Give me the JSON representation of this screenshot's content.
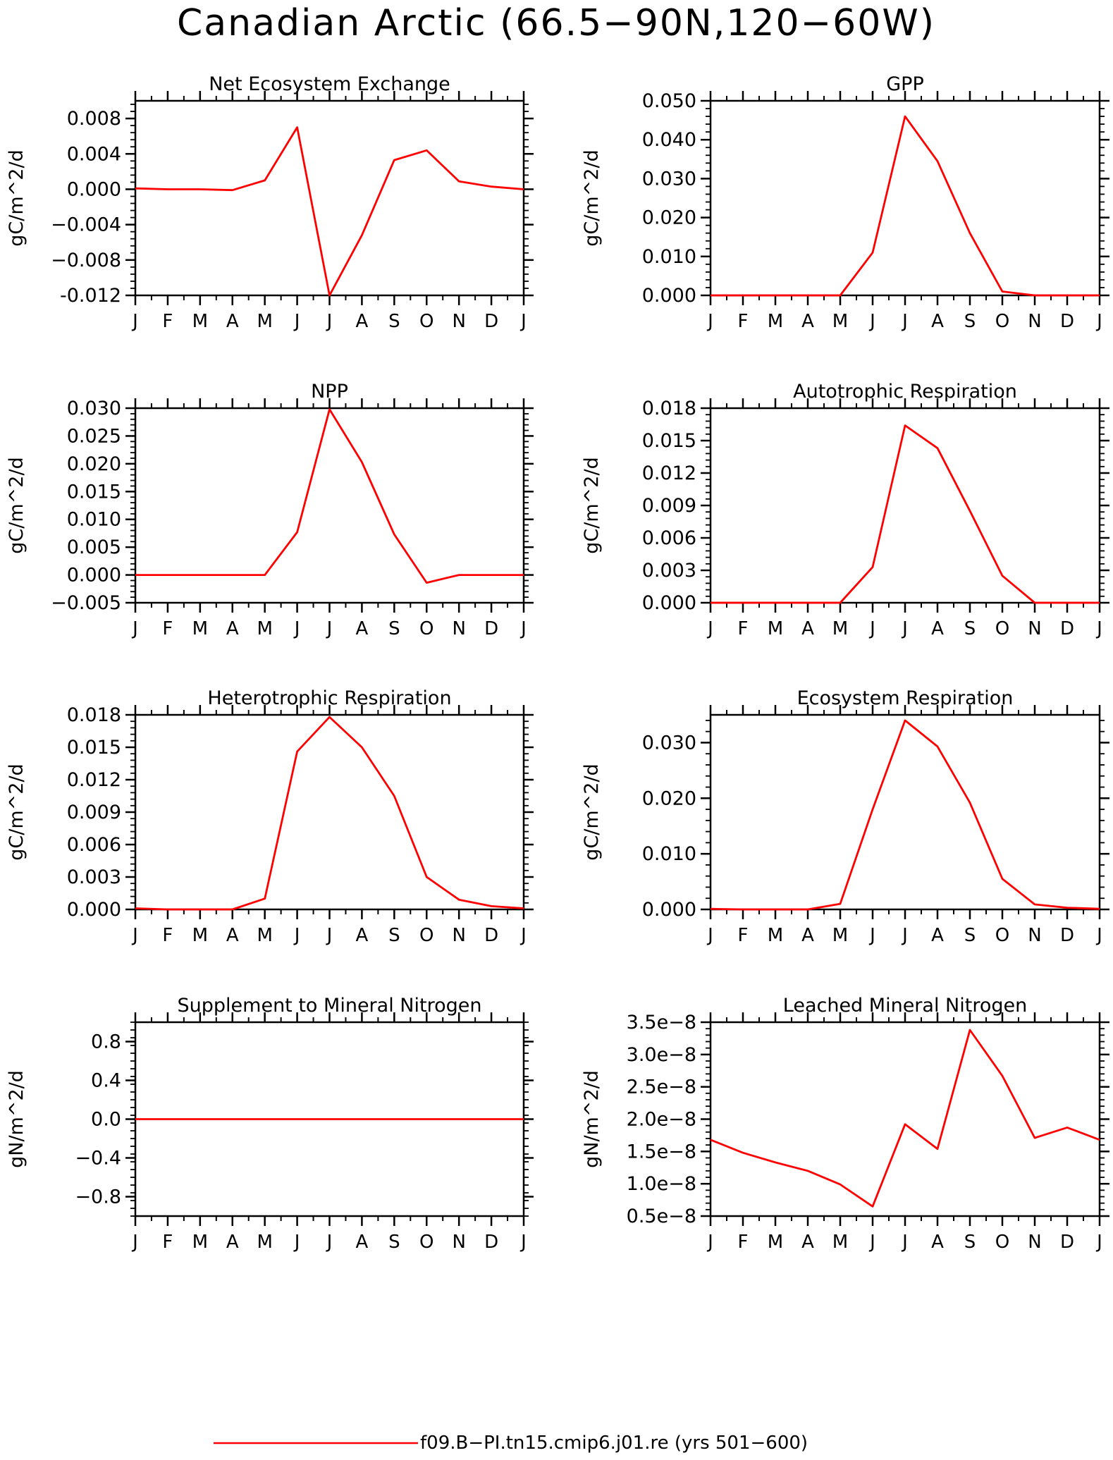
{
  "figure": {
    "title": "Canadian Arctic (66.5−90N,120−60W)",
    "legend_label": "f09.B−PI.tn15.cmip6.j01.re (yrs 501−600)",
    "line_color": "#ff0000"
  },
  "months": [
    "J",
    "F",
    "M",
    "A",
    "M",
    "J",
    "J",
    "A",
    "S",
    "O",
    "N",
    "D",
    "J"
  ],
  "chart_data": [
    {
      "type": "line",
      "title": "Net Ecosystem Exchange",
      "ylabel": "gC/m^2/d",
      "ylim": [
        -0.012,
        0.01
      ],
      "yticks": [
        0.008,
        0.004,
        0.0,
        -0.004,
        -0.008,
        -0.012
      ],
      "ytick_labels": [
        "0.008",
        "0.004",
        "0.000",
        "−0.004",
        "−0.008",
        "-0.012"
      ],
      "series": [
        {
          "values": [
            0.0001,
            0.0,
            0.0,
            -0.0001,
            0.001,
            0.007,
            -0.012,
            -0.0052,
            0.0033,
            0.0044,
            0.0009,
            0.0003,
            0.0
          ]
        }
      ]
    },
    {
      "type": "line",
      "title": "GPP",
      "ylabel": "gC/m^2/d",
      "ylim": [
        0.0,
        0.05
      ],
      "yticks": [
        0.05,
        0.04,
        0.03,
        0.02,
        0.01,
        0.0
      ],
      "ytick_labels": [
        "0.050",
        "0.040",
        "0.030",
        "0.020",
        "0.010",
        "0.000"
      ],
      "series": [
        {
          "values": [
            0.0,
            0.0,
            0.0,
            0.0,
            0.0,
            0.011,
            0.046,
            0.0345,
            0.016,
            0.001,
            0.0,
            0.0,
            0.0
          ]
        }
      ]
    },
    {
      "type": "line",
      "title": "NPP",
      "ylabel": "gC/m^2/d",
      "ylim": [
        -0.005,
        0.03
      ],
      "yticks": [
        0.03,
        0.025,
        0.02,
        0.015,
        0.01,
        0.005,
        0.0,
        -0.005
      ],
      "ytick_labels": [
        "0.030",
        "0.025",
        "0.020",
        "0.015",
        "0.010",
        "0.005",
        "0.000",
        "−0.005"
      ],
      "series": [
        {
          "values": [
            0.0,
            0.0,
            0.0,
            0.0,
            0.0,
            0.0077,
            0.0298,
            0.0203,
            0.0073,
            -0.0014,
            0.0,
            0.0,
            0.0
          ]
        }
      ]
    },
    {
      "type": "line",
      "title": "Autotrophic Respiration",
      "ylabel": "gC/m^2/d",
      "ylim": [
        0.0,
        0.018
      ],
      "yticks": [
        0.018,
        0.015,
        0.012,
        0.009,
        0.006,
        0.003,
        0.0
      ],
      "ytick_labels": [
        "0.018",
        "0.015",
        "0.012",
        "0.009",
        "0.006",
        "0.003",
        "0.000"
      ],
      "series": [
        {
          "values": [
            0.0,
            0.0,
            0.0,
            0.0,
            0.0,
            0.0033,
            0.0164,
            0.0143,
            0.0085,
            0.0025,
            0.0,
            0.0,
            0.0
          ]
        }
      ]
    },
    {
      "type": "line",
      "title": "Heterotrophic Respiration",
      "ylabel": "gC/m^2/d",
      "ylim": [
        0.0,
        0.018
      ],
      "yticks": [
        0.018,
        0.015,
        0.012,
        0.009,
        0.006,
        0.003,
        0.0
      ],
      "ytick_labels": [
        "0.018",
        "0.015",
        "0.012",
        "0.009",
        "0.006",
        "0.003",
        "0.000"
      ],
      "series": [
        {
          "values": [
            0.0001,
            0.0,
            0.0,
            0.0,
            0.001,
            0.0146,
            0.0178,
            0.015,
            0.0105,
            0.003,
            0.0009,
            0.0003,
            0.0001
          ]
        }
      ]
    },
    {
      "type": "line",
      "title": "Ecosystem Respiration",
      "ylabel": "gC/m^2/d",
      "ylim": [
        0.0,
        0.035
      ],
      "yticks": [
        0.03,
        0.02,
        0.01,
        0.0
      ],
      "ytick_labels": [
        "0.030",
        "0.020",
        "0.010",
        "0.000"
      ],
      "series": [
        {
          "values": [
            0.0001,
            0.0,
            0.0,
            0.0,
            0.001,
            0.018,
            0.034,
            0.0293,
            0.0192,
            0.0055,
            0.0009,
            0.0003,
            0.0001
          ]
        }
      ]
    },
    {
      "type": "line",
      "title": "Supplement to Mineral Nitrogen",
      "ylabel": "gN/m^2/d",
      "ylim": [
        -1.0,
        1.0
      ],
      "yticks": [
        0.8,
        0.4,
        0.0,
        -0.4,
        -0.8
      ],
      "ytick_labels": [
        "0.8",
        "0.4",
        "0.0",
        "−0.4",
        "−0.8"
      ],
      "series": [
        {
          "values": [
            0,
            0,
            0,
            0,
            0,
            0,
            0,
            0,
            0,
            0,
            0,
            0,
            0
          ]
        }
      ]
    },
    {
      "type": "line",
      "title": "Leached Mineral Nitrogen",
      "ylabel": "gN/m^2/d",
      "ylim": [
        5e-09,
        3.5e-08
      ],
      "yticks": [
        3.5e-08,
        3e-08,
        2.5e-08,
        2e-08,
        1.5e-08,
        1e-08,
        5e-09
      ],
      "ytick_labels": [
        "3.5e−8",
        "3.0e−8",
        "2.5e−8",
        "2.0e−8",
        "1.5e−8",
        "1.0e−8",
        "0.5e−8"
      ],
      "series": [
        {
          "values": [
            1.68e-08,
            1.48e-08,
            1.33e-08,
            1.2e-08,
            9.9e-09,
            6.5e-09,
            1.92e-08,
            1.54e-08,
            3.38e-08,
            2.67e-08,
            1.71e-08,
            1.87e-08,
            1.68e-08
          ]
        }
      ]
    }
  ]
}
